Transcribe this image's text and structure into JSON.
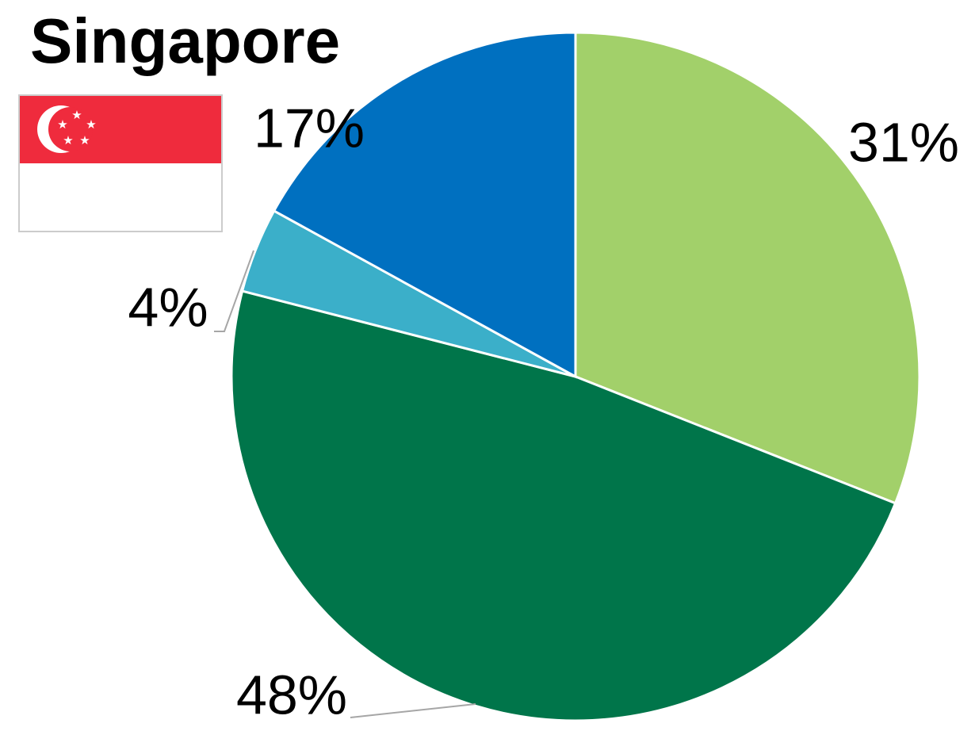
{
  "chart_data": {
    "type": "pie",
    "title": "Singapore",
    "values": [
      31,
      48,
      4,
      17
    ],
    "value_labels": [
      "31%",
      "48%",
      "4%",
      "17%"
    ],
    "colors": [
      "#a2d06a",
      "#00754a",
      "#3bafc9",
      "#0070c0"
    ]
  }
}
